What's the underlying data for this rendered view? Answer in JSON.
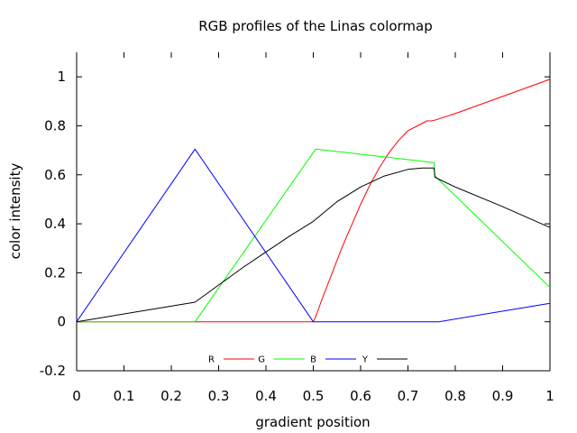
{
  "chart_data": {
    "type": "line",
    "title": "RGB profiles of the Linas colormap",
    "xlabel": "gradient position",
    "ylabel": "color intensity",
    "xlim": [
      0,
      1
    ],
    "ylim": [
      -0.2,
      1.1
    ],
    "xticks": [
      "0",
      "0.1",
      "0.2",
      "0.3",
      "0.4",
      "0.5",
      "0.6",
      "0.7",
      "0.8",
      "0.9",
      "1"
    ],
    "yticks": [
      "-0.2",
      "0",
      "0.2",
      "0.4",
      "0.6",
      "0.8",
      "1"
    ],
    "legend_position": "bottom-center",
    "series": [
      {
        "name": "R",
        "color": "#ff0000",
        "x": [
          0,
          0.5,
          0.505,
          0.52,
          0.54,
          0.56,
          0.58,
          0.6,
          0.62,
          0.64,
          0.66,
          0.68,
          0.7,
          0.72,
          0.74,
          0.75,
          0.76,
          0.8,
          0.85,
          0.9,
          0.95,
          1.0
        ],
        "y": [
          0,
          0,
          0.02,
          0.1,
          0.2,
          0.3,
          0.39,
          0.48,
          0.56,
          0.63,
          0.69,
          0.74,
          0.78,
          0.8,
          0.82,
          0.82,
          0.825,
          0.85,
          0.885,
          0.92,
          0.955,
          0.99
        ]
      },
      {
        "name": "G",
        "color": "#00ff00",
        "x": [
          0,
          0.25,
          0.505,
          0.755,
          0.757,
          1.0
        ],
        "y": [
          0,
          0,
          0.705,
          0.65,
          0.595,
          0.14
        ]
      },
      {
        "name": "B",
        "color": "#0000ff",
        "x": [
          0,
          0.25,
          0.5,
          0.505,
          0.765,
          1.0
        ],
        "y": [
          0,
          0.705,
          0,
          0,
          0,
          0.075
        ]
      },
      {
        "name": "Y",
        "color": "#000000",
        "x": [
          0,
          0.25,
          0.3,
          0.35,
          0.4,
          0.45,
          0.5,
          0.55,
          0.6,
          0.65,
          0.7,
          0.73,
          0.755,
          0.757,
          0.8,
          0.9,
          1.0
        ],
        "y": [
          0,
          0.08,
          0.15,
          0.22,
          0.285,
          0.35,
          0.41,
          0.49,
          0.55,
          0.595,
          0.622,
          0.628,
          0.628,
          0.59,
          0.55,
          0.47,
          0.385
        ]
      }
    ]
  }
}
